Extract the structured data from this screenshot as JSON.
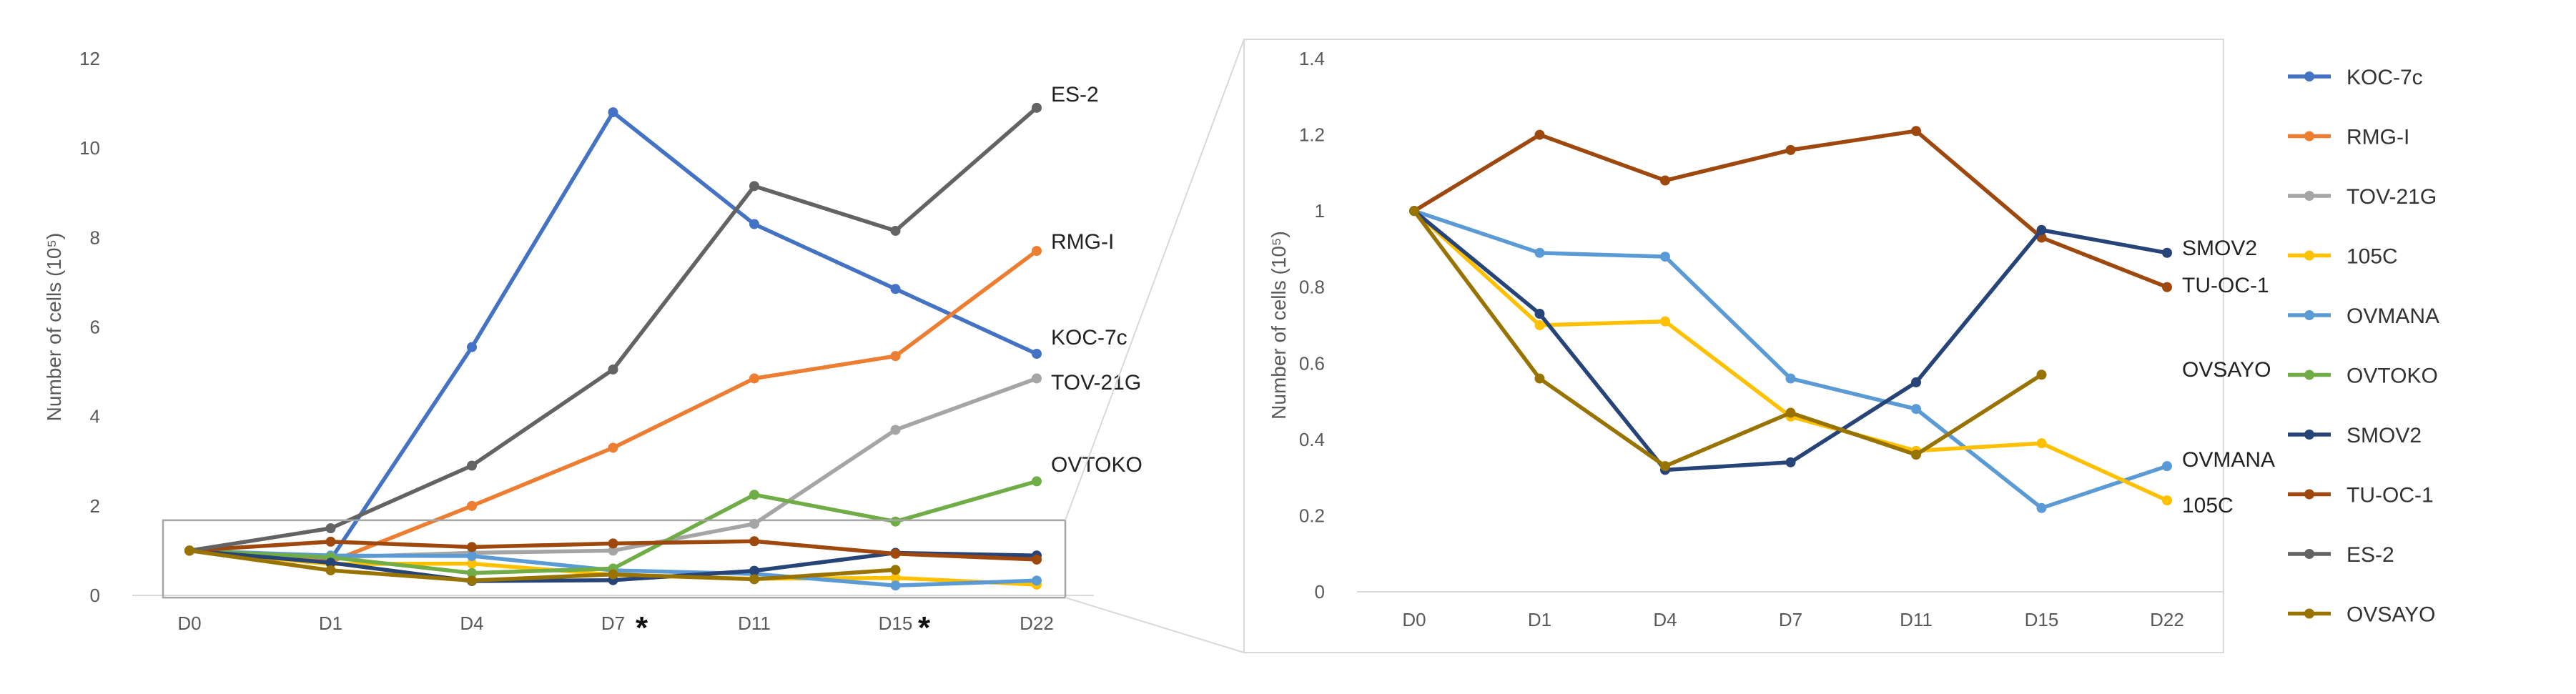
{
  "chart_data": [
    {
      "type": "line",
      "name": "full",
      "ylabel": "Number of cells (10⁵)",
      "ylim": [
        0,
        12
      ],
      "yticks": [
        "0",
        "2",
        "4",
        "6",
        "8",
        "10",
        "12"
      ],
      "categories": [
        "D0",
        "D1",
        "D4",
        "D7",
        "D11",
        "D15",
        "D22"
      ],
      "starred_categories": [
        "D7",
        "D15"
      ],
      "star_symbol": "*",
      "series": [
        {
          "name": "KOC-7c",
          "color": "#4472C4",
          "values": [
            1,
            0.8,
            5.55,
            10.8,
            8.3,
            6.85,
            5.4
          ],
          "end_label": "KOC-7c"
        },
        {
          "name": "RMG-I",
          "color": "#ED7D31",
          "values": [
            1,
            0.75,
            2.0,
            3.3,
            4.85,
            5.35,
            7.7
          ],
          "end_label": "RMG-I"
        },
        {
          "name": "TOV-21G",
          "color": "#A5A5A5",
          "values": [
            1,
            0.85,
            0.95,
            1.0,
            1.6,
            3.7,
            4.85
          ],
          "end_label": "TOV-21G"
        },
        {
          "name": "105C",
          "color": "#FFC000",
          "values": [
            1,
            0.7,
            0.71,
            0.46,
            0.37,
            0.39,
            0.24
          ]
        },
        {
          "name": "OVMANA",
          "color": "#5B9BD5",
          "values": [
            1,
            0.89,
            0.88,
            0.56,
            0.48,
            0.22,
            0.33
          ]
        },
        {
          "name": "OVTOKO",
          "color": "#70AD47",
          "values": [
            1,
            0.85,
            0.5,
            0.6,
            2.25,
            1.65,
            2.55
          ],
          "end_label": "OVTOKO"
        },
        {
          "name": "SMOV2",
          "color": "#264478",
          "values": [
            1,
            0.73,
            0.32,
            0.34,
            0.55,
            0.95,
            0.89
          ]
        },
        {
          "name": "TU-OC-1",
          "color": "#9E480E",
          "values": [
            1,
            1.2,
            1.08,
            1.16,
            1.21,
            0.93,
            0.8
          ]
        },
        {
          "name": "ES-2",
          "color": "#636363",
          "values": [
            1,
            1.5,
            2.9,
            5.05,
            9.15,
            8.15,
            10.9
          ],
          "end_label": "ES-2"
        },
        {
          "name": "OVSAYO",
          "color": "#997300",
          "values": [
            1,
            0.56,
            0.33,
            0.47,
            0.36,
            0.57,
            null
          ]
        }
      ]
    },
    {
      "type": "line",
      "name": "zoom",
      "ylabel": "Number of cells (10⁵)",
      "ylim": [
        0,
        1.4
      ],
      "yticks": [
        "0",
        "0.2",
        "0.4",
        "0.6",
        "0.8",
        "1",
        "1.2",
        "1.4"
      ],
      "categories": [
        "D0",
        "D1",
        "D4",
        "D7",
        "D11",
        "D15",
        "D22"
      ],
      "series": [
        {
          "name": "TU-OC-1",
          "color": "#9E480E",
          "values": [
            1,
            1.2,
            1.08,
            1.16,
            1.21,
            0.93,
            0.8
          ],
          "end_label": "TU-OC-1"
        },
        {
          "name": "OVMANA",
          "color": "#5B9BD5",
          "values": [
            1,
            0.89,
            0.88,
            0.56,
            0.48,
            0.22,
            0.33
          ],
          "end_label": "OVMANA"
        },
        {
          "name": "105C",
          "color": "#FFC000",
          "values": [
            1,
            0.7,
            0.71,
            0.46,
            0.37,
            0.39,
            0.24
          ],
          "end_label": "105C"
        },
        {
          "name": "SMOV2",
          "color": "#264478",
          "values": [
            1,
            0.73,
            0.32,
            0.34,
            0.55,
            0.95,
            0.89
          ],
          "end_label": "SMOV2"
        },
        {
          "name": "OVSAYO",
          "color": "#997300",
          "values": [
            1,
            0.56,
            0.33,
            0.47,
            0.36,
            0.57,
            null
          ],
          "end_label": "OVSAYO"
        }
      ]
    }
  ],
  "legend": [
    {
      "name": "KOC-7c",
      "color": "#4472C4"
    },
    {
      "name": "RMG-I",
      "color": "#ED7D31"
    },
    {
      "name": "TOV-21G",
      "color": "#A5A5A5"
    },
    {
      "name": "105C",
      "color": "#FFC000"
    },
    {
      "name": "OVMANA",
      "color": "#5B9BD5"
    },
    {
      "name": "OVTOKO",
      "color": "#70AD47"
    },
    {
      "name": "SMOV2",
      "color": "#264478"
    },
    {
      "name": "TU-OC-1",
      "color": "#9E480E"
    },
    {
      "name": "ES-2",
      "color": "#636363"
    },
    {
      "name": "OVSAYO",
      "color": "#997300"
    }
  ]
}
